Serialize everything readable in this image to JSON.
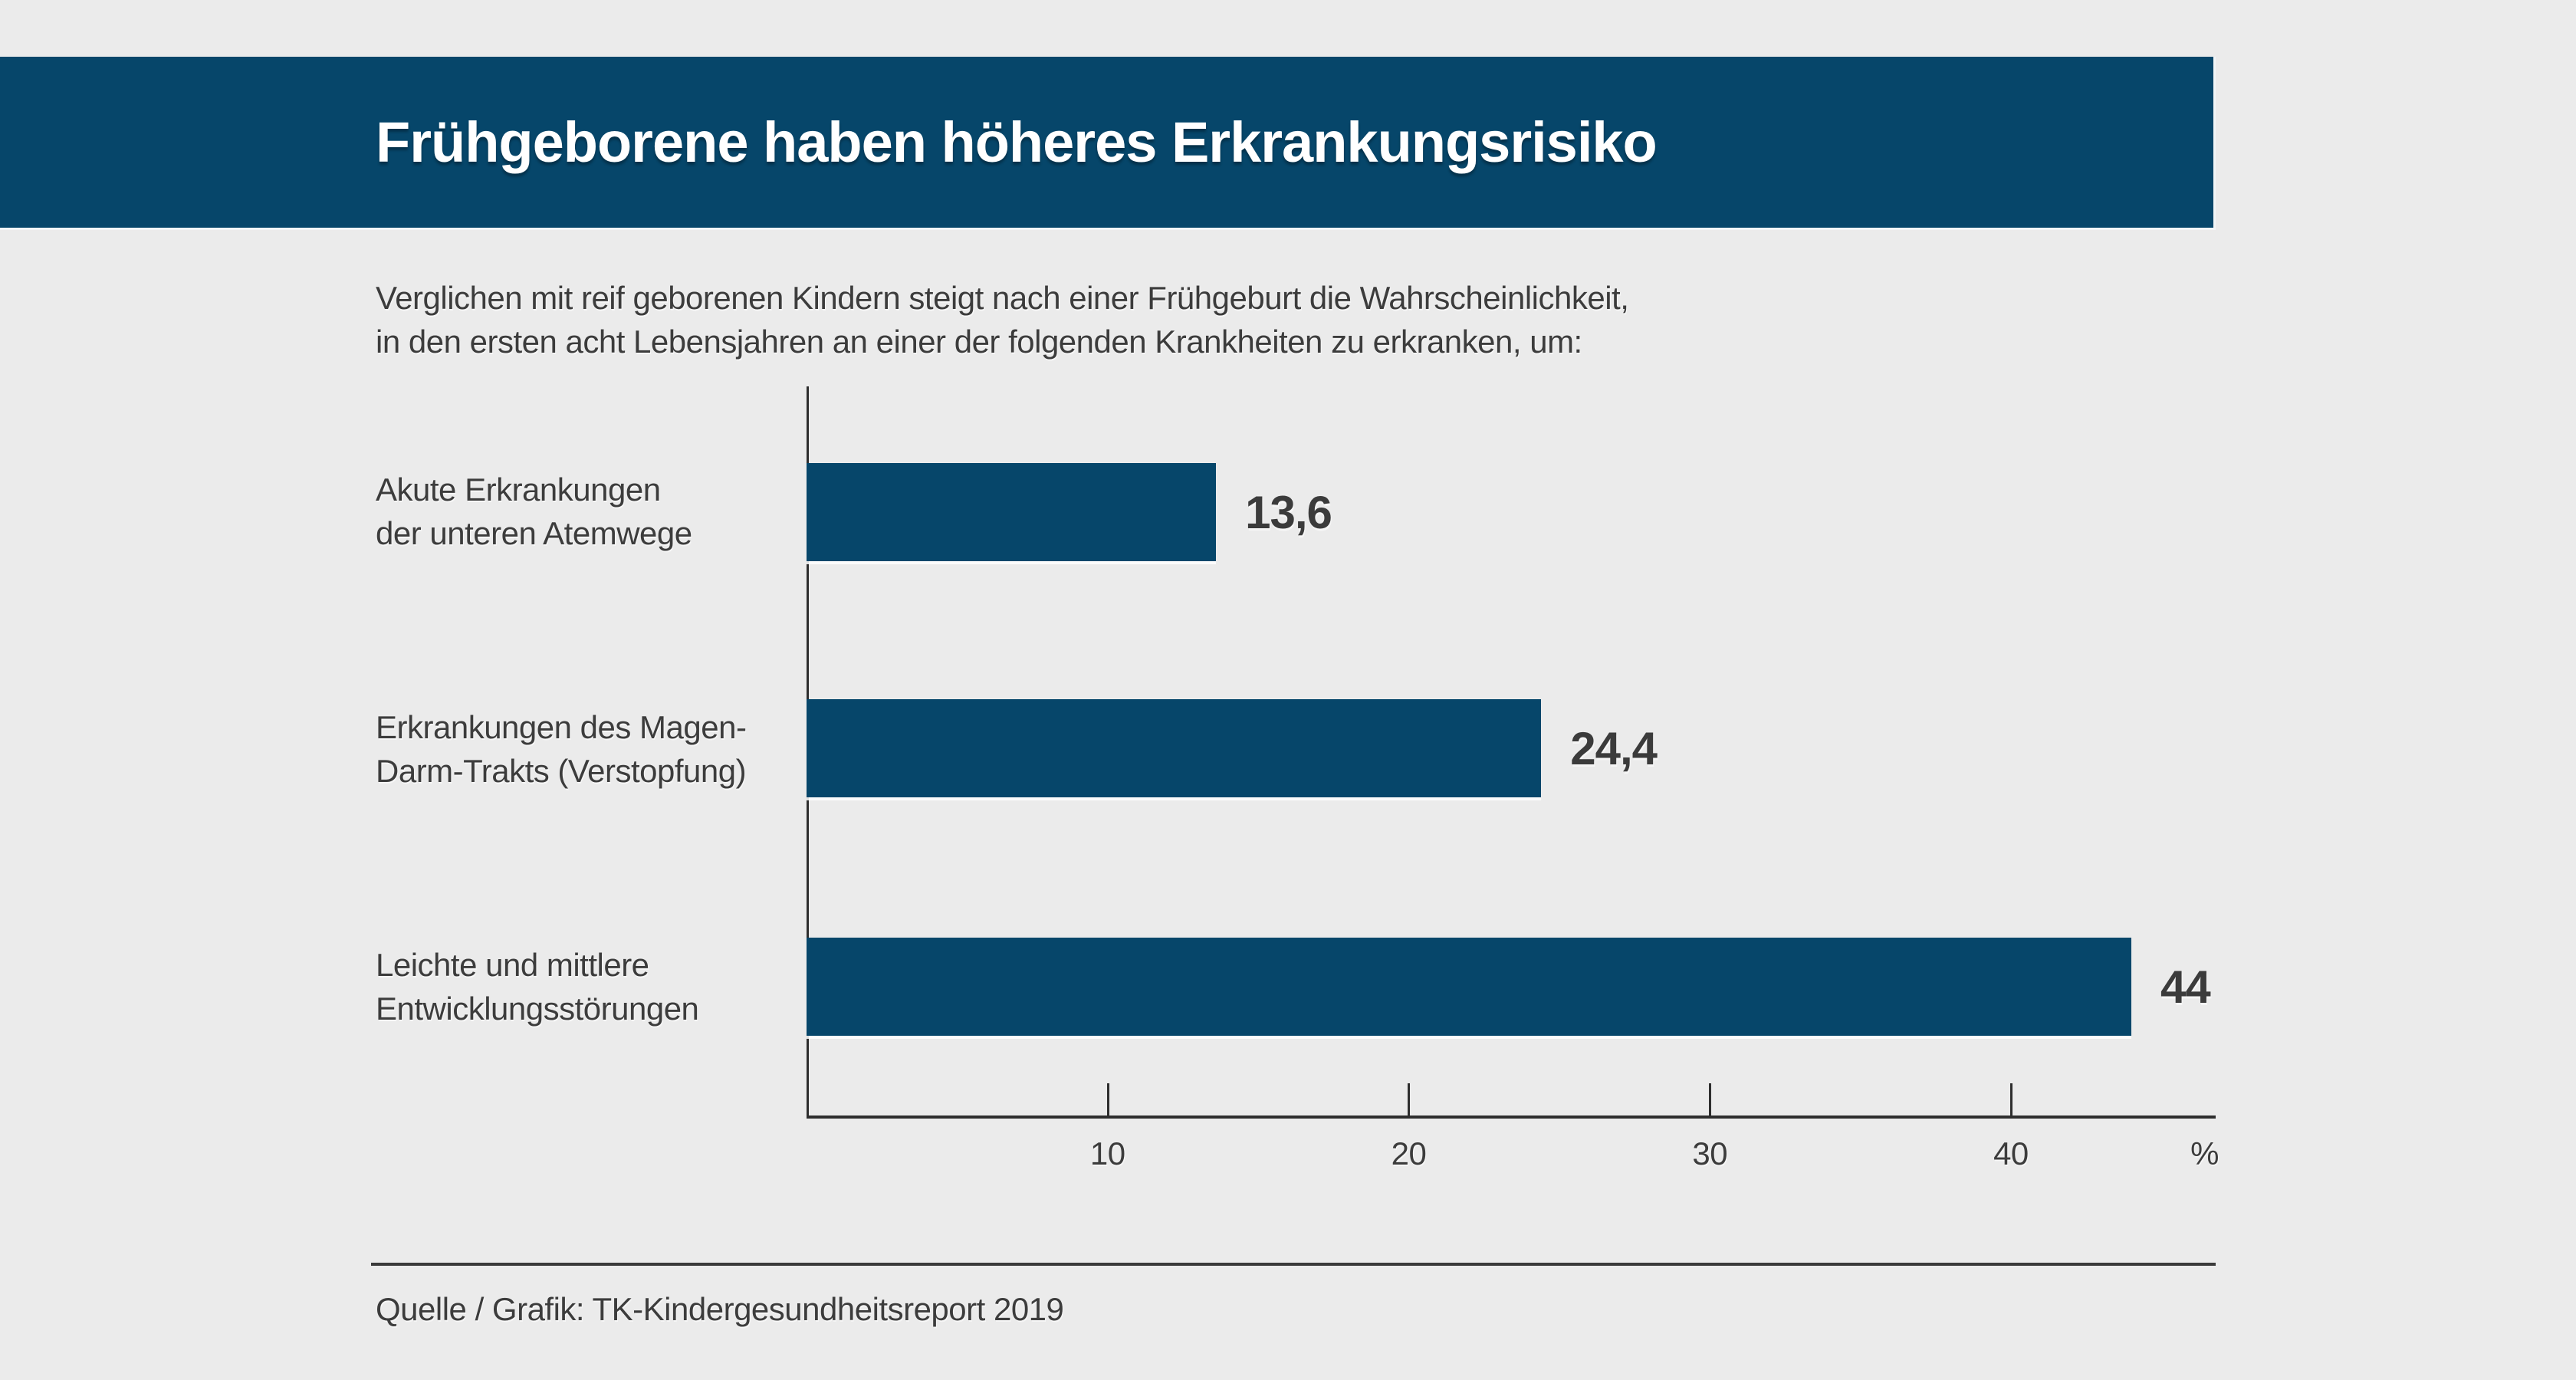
{
  "header": {
    "title": "Frühgeborene haben höheres Erkrankungsrisiko"
  },
  "subtitle": {
    "line1": "Verglichen mit reif geborenen Kindern steigt nach einer Frühgeburt die Wahrscheinlichkeit,",
    "line2": "in den ersten acht Lebensjahren an einer der folgenden Krankheiten zu erkranken, um:"
  },
  "source": {
    "text": "Quelle / Grafik: TK-Kindergesundheitsreport 2019"
  },
  "colors": {
    "accent": "#06466A",
    "background": "#EBEBEB",
    "text": "#3C3C3C",
    "axis": "#2E2E2E",
    "title_text": "#FFFFFF"
  },
  "chart_data": {
    "type": "bar",
    "orientation": "horizontal",
    "title": "Frühgeborene haben höheres Erkrankungsrisiko",
    "subtitle": "Verglichen mit reif geborenen Kindern steigt nach einer Frühgeburt die Wahrscheinlichkeit, in den ersten acht Lebensjahren an einer der folgenden Krankheiten zu erkranken, um:",
    "categories": [
      [
        "Akute Erkrankungen",
        "der unteren Atemwege"
      ],
      [
        "Erkrankungen des Magen-",
        "Darm-Trakts (Verstopfung)"
      ],
      [
        "Leichte und mittlere",
        "Entwicklungsstörungen"
      ]
    ],
    "values": [
      13.6,
      24.4,
      44
    ],
    "value_labels": [
      "13,6",
      "24,4",
      "44"
    ],
    "unit": "%",
    "xticks": [
      10,
      20,
      30,
      40
    ],
    "xtick_labels": [
      "10",
      "20",
      "30",
      "40"
    ],
    "xlim": [
      0,
      46.8
    ],
    "grid": false,
    "legend": false,
    "bar_color": "#06466A",
    "source": "Quelle / Grafik: TK-Kindergesundheitsreport 2019"
  }
}
